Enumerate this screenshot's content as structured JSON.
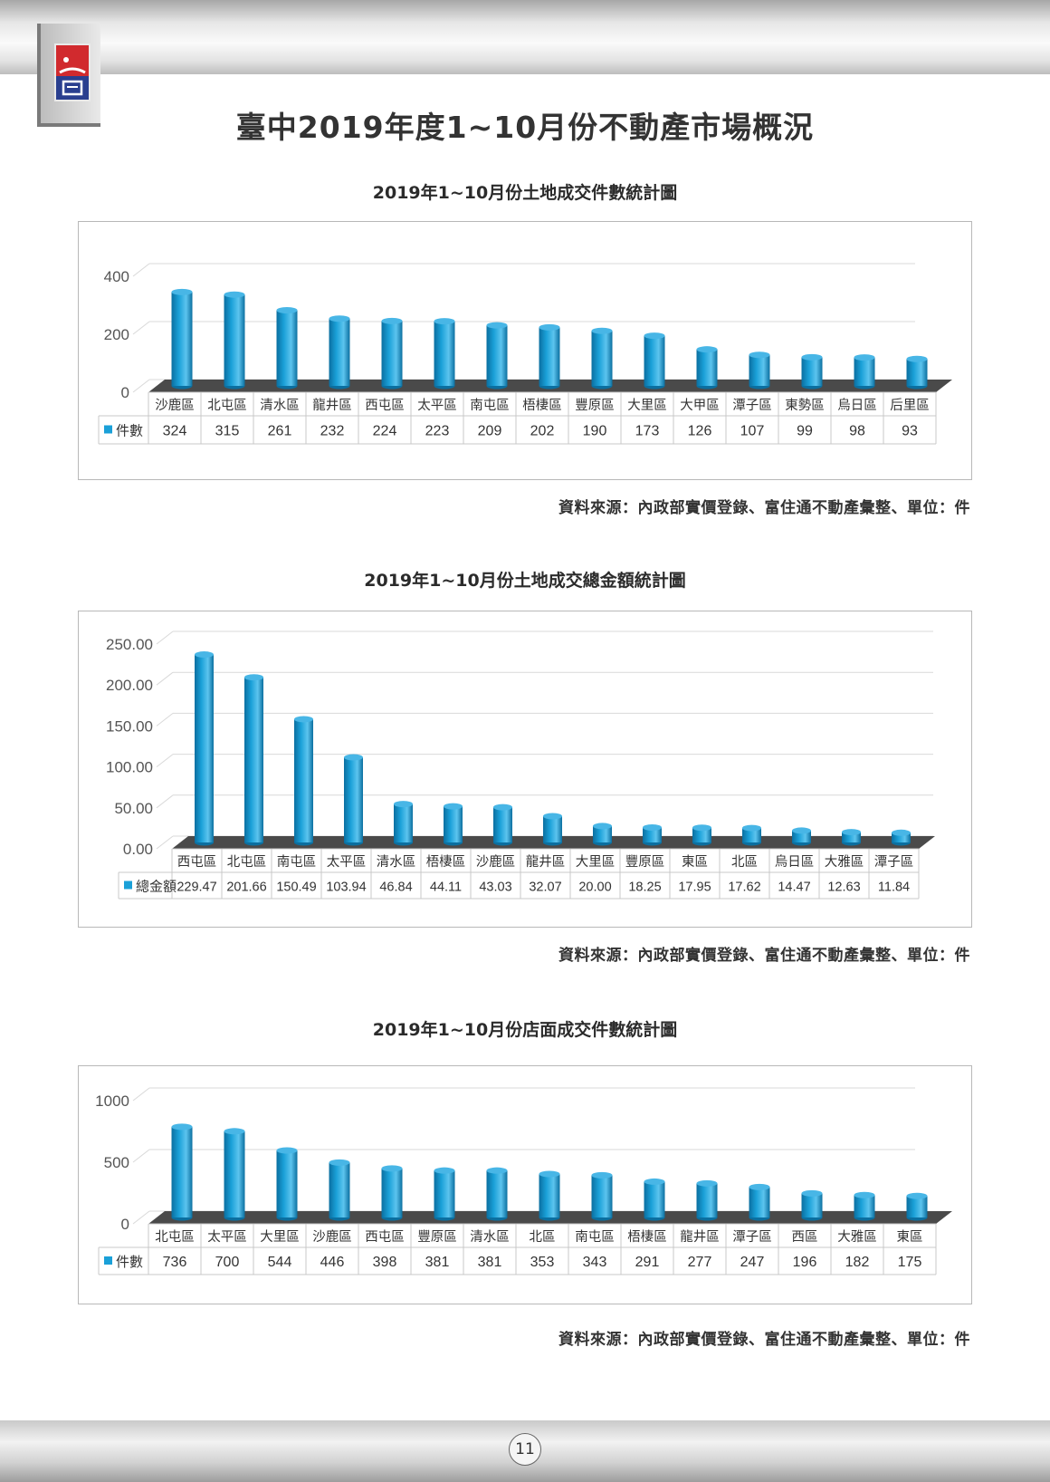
{
  "page": {
    "title": "臺中2019年度1~10月份不動產市場概況",
    "page_number": "11",
    "colors": {
      "bar": "#1aa0d8",
      "bar_dark": "#0b6fa0",
      "floor": "#4a4a4a"
    }
  },
  "logo": {
    "name": "company-logo-icon"
  },
  "chart_data": [
    {
      "type": "bar",
      "title": "2019年1~10月份土地成交件數統計圖",
      "source": "資料來源：內政部實價登錄、富住通不動產彙整、單位：件",
      "series_name": "件數",
      "categories": [
        "沙鹿區",
        "北屯區",
        "清水區",
        "龍井區",
        "西屯區",
        "太平區",
        "南屯區",
        "梧棲區",
        "豐原區",
        "大里區",
        "大甲區",
        "潭子區",
        "東勢區",
        "烏日區",
        "后里區"
      ],
      "values": [
        324,
        315,
        261,
        232,
        224,
        223,
        209,
        202,
        190,
        173,
        126,
        107,
        99,
        98,
        93
      ],
      "value_labels": [
        "324",
        "315",
        "261",
        "232",
        "224",
        "223",
        "209",
        "202",
        "190",
        "173",
        "126",
        "107",
        "99",
        "98",
        "93"
      ],
      "yticks": [
        "0",
        "200",
        "400"
      ],
      "ylim": [
        0,
        400
      ]
    },
    {
      "type": "bar",
      "title": "2019年1~10月份土地成交總金額統計圖",
      "source": "資料來源：內政部實價登錄、富住通不動產彙整、單位：件",
      "series_name": "總金額",
      "categories": [
        "西屯區",
        "北屯區",
        "南屯區",
        "太平區",
        "清水區",
        "梧棲區",
        "沙鹿區",
        "龍井區",
        "大里區",
        "豐原區",
        "東區",
        "北區",
        "烏日區",
        "大雅區",
        "潭子區"
      ],
      "values": [
        229.47,
        201.66,
        150.49,
        103.94,
        46.84,
        44.11,
        43.03,
        32.07,
        20.0,
        18.25,
        17.95,
        17.62,
        14.47,
        12.63,
        11.84
      ],
      "value_labels": [
        "229.47",
        "201.66",
        "150.49",
        "103.94",
        "46.84",
        "44.11",
        "43.03",
        "32.07",
        "20.00",
        "18.25",
        "17.95",
        "17.62",
        "14.47",
        "12.63",
        "11.84"
      ],
      "yticks": [
        "0.00",
        "50.00",
        "100.00",
        "150.00",
        "200.00",
        "250.00"
      ],
      "ylim": [
        0,
        250
      ]
    },
    {
      "type": "bar",
      "title": "2019年1~10月份店面成交件數統計圖",
      "source": "資料來源：內政部實價登錄、富住通不動產彙整、單位：件",
      "series_name": "件數",
      "categories": [
        "北屯區",
        "太平區",
        "大里區",
        "沙鹿區",
        "西屯區",
        "豐原區",
        "清水區",
        "北區",
        "南屯區",
        "梧棲區",
        "龍井區",
        "潭子區",
        "西區",
        "大雅區",
        "東區"
      ],
      "values": [
        736,
        700,
        544,
        446,
        398,
        381,
        381,
        353,
        343,
        291,
        277,
        247,
        196,
        182,
        175
      ],
      "value_labels": [
        "736",
        "700",
        "544",
        "446",
        "398",
        "381",
        "381",
        "353",
        "343",
        "291",
        "277",
        "247",
        "196",
        "182",
        "175"
      ],
      "yticks": [
        "0",
        "500",
        "1000"
      ],
      "ylim": [
        0,
        1000
      ]
    }
  ]
}
